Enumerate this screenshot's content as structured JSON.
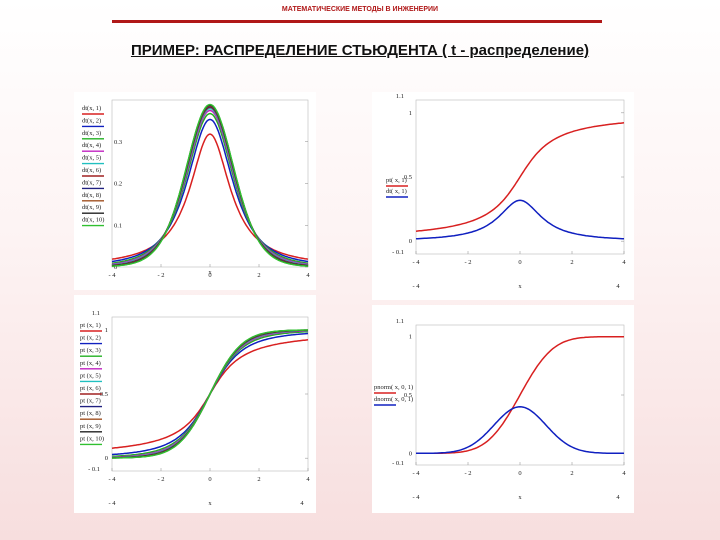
{
  "header": {
    "text": "МАТЕМАТИЧЕСКИЕ МЕТОДЫ В ИНЖЕНЕРИИ"
  },
  "slide_title": "ПРИМЕР: РАСПРЕДЕЛЕНИЕ СТЬЮДЕНТА ( t - распределение)",
  "colors": {
    "header_red": "#b01818"
  },
  "chart_data": [
    {
      "id": "dt",
      "type": "line",
      "fn": "dt",
      "xlim": [
        -4,
        4
      ],
      "ylim": [
        0,
        0.4
      ],
      "xticks": [
        "- 4",
        "- 2",
        "0",
        "2",
        "4"
      ],
      "yticks": [
        "0",
        "0.1",
        "0.2",
        "0.3"
      ],
      "ytickvals": [
        0,
        0.1,
        0.2,
        0.3
      ],
      "xlabel": "x",
      "xsub": [],
      "series": [
        {
          "name": "dt(x, 1)",
          "param": 1,
          "color": "#d82020"
        },
        {
          "name": "dt(x, 2)",
          "param": 2,
          "color": "#1020c0"
        },
        {
          "name": "dt(x, 3)",
          "param": 3,
          "color": "#20b020"
        },
        {
          "name": "dt(x, 4)",
          "param": 4,
          "color": "#c020c0"
        },
        {
          "name": "dt(x, 5)",
          "param": 5,
          "color": "#20c0c0"
        },
        {
          "name": "dt(x, 6)",
          "param": 6,
          "color": "#a02020"
        },
        {
          "name": "dt(x, 7)",
          "param": 7,
          "color": "#202080"
        },
        {
          "name": "dt(x, 8)",
          "param": 8,
          "color": "#a05020"
        },
        {
          "name": "dt(x, 9)",
          "param": 9,
          "color": "#202020"
        },
        {
          "name": "dt(x, 10)",
          "param": 10,
          "color": "#30c030"
        }
      ]
    },
    {
      "id": "pt1",
      "type": "line",
      "fn": "mixed_t",
      "xlim": [
        -4,
        4
      ],
      "ylim": [
        -0.1,
        1.1
      ],
      "xticks": [
        "- 4",
        "- 2",
        "0",
        "2",
        "4"
      ],
      "yticks": [
        "0",
        "0.5",
        "1"
      ],
      "ytickvals": [
        0,
        0.5,
        1
      ],
      "ytop": "1.1",
      "ybottom": "- 0.1",
      "xlabel": "x",
      "xsub": [
        "- 4",
        "4"
      ],
      "series": [
        {
          "name": "pt( x, 1)",
          "kind": "pt",
          "param": 1,
          "color": "#d82020"
        },
        {
          "name": "dt( x, 1)",
          "kind": "dt",
          "param": 1,
          "color": "#1020c0"
        }
      ]
    },
    {
      "id": "pt",
      "type": "line",
      "fn": "pt",
      "xlim": [
        -4,
        4
      ],
      "ylim": [
        -0.1,
        1.1
      ],
      "xticks": [
        "- 4",
        "- 2",
        "0",
        "2",
        "4"
      ],
      "yticks": [
        "0",
        "0.5",
        "1"
      ],
      "ytickvals": [
        0,
        0.5,
        1
      ],
      "ytop": "1.1",
      "ybottom": "- 0.1",
      "xlabel": "x",
      "xsub": [
        "- 4",
        "4"
      ],
      "series": [
        {
          "name": "pt (x, 1)",
          "param": 1,
          "color": "#d82020"
        },
        {
          "name": "pt (x, 2)",
          "param": 2,
          "color": "#1020c0"
        },
        {
          "name": "pt (x, 3)",
          "param": 3,
          "color": "#20b020"
        },
        {
          "name": "pt (x, 4)",
          "param": 4,
          "color": "#c020c0"
        },
        {
          "name": "pt (x, 5)",
          "param": 5,
          "color": "#20c0c0"
        },
        {
          "name": "pt (x, 6)",
          "param": 6,
          "color": "#a02020"
        },
        {
          "name": "pt (x, 7)",
          "param": 7,
          "color": "#202080"
        },
        {
          "name": "pt (x, 8)",
          "param": 8,
          "color": "#a05020"
        },
        {
          "name": "pt (x, 9)",
          "param": 9,
          "color": "#202020"
        },
        {
          "name": "pt (x, 10)",
          "param": 10,
          "color": "#30c030"
        }
      ]
    },
    {
      "id": "norm",
      "type": "line",
      "fn": "normal",
      "xlim": [
        -4,
        4
      ],
      "ylim": [
        -0.1,
        1.1
      ],
      "xticks": [
        "- 4",
        "- 2",
        "0",
        "2",
        "4"
      ],
      "yticks": [
        "0",
        "0.5",
        "1"
      ],
      "ytickvals": [
        0,
        0.5,
        1
      ],
      "ytop": "1.1",
      "ybottom": "- 0.1",
      "xlabel": "x",
      "xsub": [
        "- 4",
        "4"
      ],
      "series": [
        {
          "name": "pnorm( x, 0, 1)",
          "kind": "pnorm",
          "color": "#d82020"
        },
        {
          "name": "dnorm( x, 0, 1)",
          "kind": "dnorm",
          "color": "#1020c0"
        }
      ]
    }
  ]
}
